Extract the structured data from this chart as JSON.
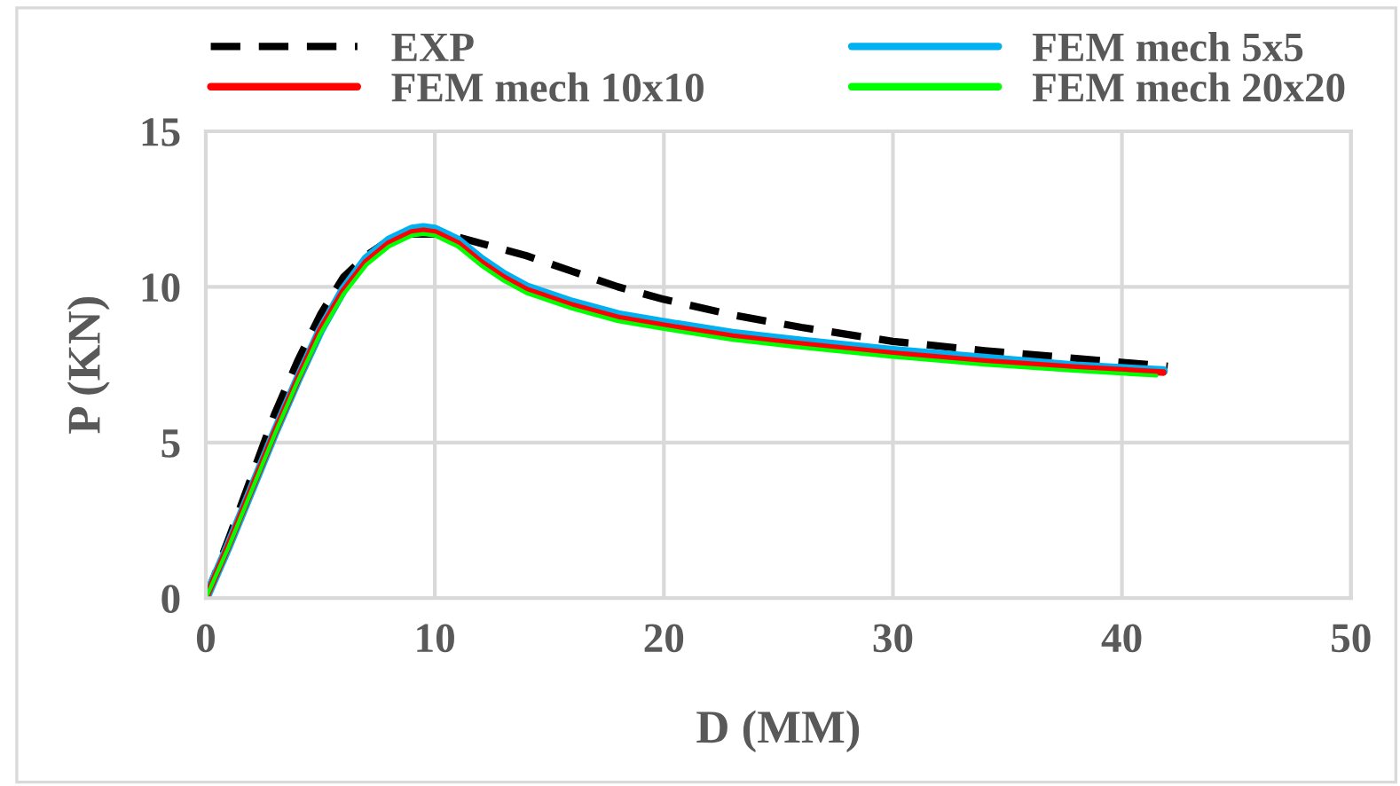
{
  "chart_data": {
    "type": "line",
    "xlabel": "D (MM)",
    "ylabel": "P (KN)",
    "xlim": [
      0,
      50
    ],
    "xticks": [
      0,
      10,
      20,
      30,
      40,
      50
    ],
    "ylim": [
      0,
      15
    ],
    "yticks": [
      0,
      5,
      10,
      15
    ],
    "grid": true,
    "legend": "top",
    "marker": "none",
    "series": [
      {
        "name": "EXP",
        "color": "#000000",
        "line_style": "dashed",
        "x": [
          0,
          1,
          2,
          3,
          4,
          5,
          6,
          7,
          8,
          9,
          10,
          11,
          12,
          14,
          16,
          18,
          20,
          23,
          26,
          30,
          34,
          38,
          42
        ],
        "values": [
          0,
          1.9,
          3.9,
          5.9,
          7.6,
          9.1,
          10.3,
          11.0,
          11.5,
          11.7,
          11.7,
          11.6,
          11.4,
          11.0,
          10.5,
          10.0,
          9.6,
          9.1,
          8.7,
          8.25,
          7.95,
          7.7,
          7.45
        ]
      },
      {
        "name": "FEM mech 5x5",
        "color": "#00b0f0",
        "line_style": "solid",
        "x": [
          0,
          1,
          2,
          3,
          4,
          5,
          6,
          7,
          8,
          9,
          9.5,
          10,
          11,
          12,
          13,
          14,
          16,
          18,
          20,
          23,
          26,
          30,
          34,
          38,
          41.8
        ],
        "values": [
          0,
          1.7,
          3.5,
          5.3,
          7.0,
          8.6,
          9.9,
          10.9,
          11.5,
          11.85,
          11.9,
          11.85,
          11.5,
          10.9,
          10.4,
          10.0,
          9.5,
          9.1,
          8.85,
          8.5,
          8.25,
          7.95,
          7.7,
          7.45,
          7.3
        ]
      },
      {
        "name": "FEM mech 10x10",
        "color": "#ff0000",
        "line_style": "solid",
        "x": [
          0,
          1,
          2,
          3,
          4,
          5,
          6,
          7,
          8,
          9,
          9.5,
          10,
          11,
          12,
          13,
          14,
          16,
          18,
          20,
          23,
          26,
          30,
          34,
          38,
          41.8
        ],
        "values": [
          0,
          1.7,
          3.5,
          5.3,
          7.0,
          8.6,
          9.85,
          10.8,
          11.4,
          11.75,
          11.8,
          11.75,
          11.4,
          10.8,
          10.3,
          9.9,
          9.4,
          9.0,
          8.75,
          8.4,
          8.15,
          7.85,
          7.6,
          7.4,
          7.25
        ]
      },
      {
        "name": "FEM mech 20x20",
        "color": "#00ff00",
        "line_style": "solid",
        "x": [
          0,
          1,
          2,
          3,
          4,
          5,
          6,
          7,
          8,
          9,
          9.5,
          10,
          11,
          12,
          13,
          14,
          16,
          18,
          20,
          23,
          26,
          30,
          34,
          38,
          41.5
        ],
        "values": [
          0,
          1.65,
          3.45,
          5.25,
          6.95,
          8.5,
          9.75,
          10.7,
          11.3,
          11.65,
          11.7,
          11.65,
          11.3,
          10.7,
          10.2,
          9.8,
          9.3,
          8.9,
          8.65,
          8.3,
          8.05,
          7.75,
          7.5,
          7.3,
          7.15
        ]
      }
    ]
  }
}
